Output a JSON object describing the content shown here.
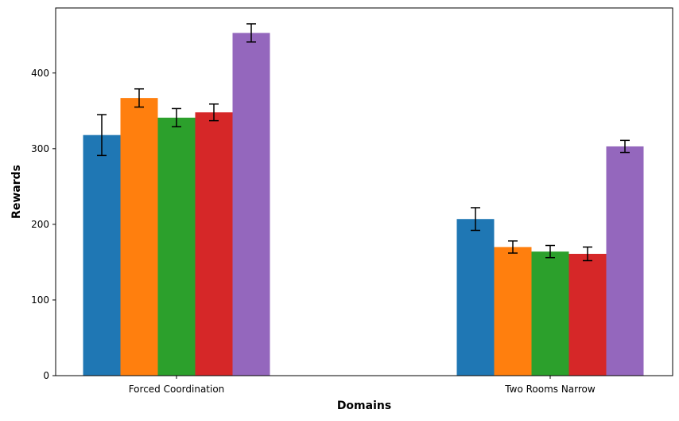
{
  "chart_data": {
    "type": "bar",
    "title": "",
    "xlabel": "Domains",
    "ylabel": "Rewards",
    "categories": [
      "Forced Coordination",
      "Two Rooms Narrow"
    ],
    "ylim": [
      0,
      486
    ],
    "yticks": [
      0,
      100,
      200,
      300,
      400
    ],
    "grid": false,
    "legend": "none",
    "series": [
      {
        "color": "#1f77b4",
        "values": [
          318,
          207
        ],
        "errors": [
          27,
          15
        ]
      },
      {
        "color": "#ff7f0e",
        "values": [
          367,
          170
        ],
        "errors": [
          12,
          8
        ]
      },
      {
        "color": "#2ca02c",
        "values": [
          341,
          164
        ],
        "errors": [
          12,
          8
        ]
      },
      {
        "color": "#d62728",
        "values": [
          348,
          161
        ],
        "errors": [
          11,
          9
        ]
      },
      {
        "color": "#9467bd",
        "values": [
          453,
          303
        ],
        "errors": [
          12,
          8
        ]
      }
    ]
  }
}
